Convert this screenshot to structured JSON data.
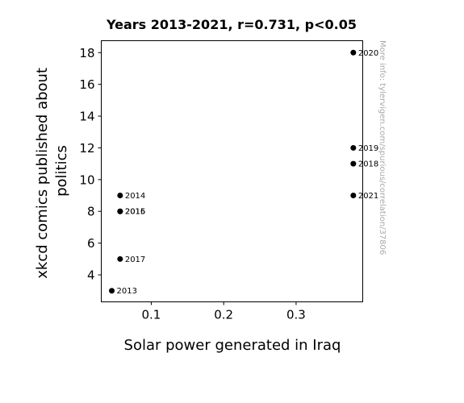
{
  "chart_data": {
    "type": "scatter",
    "title": "Years 2013-2021, r=0.731, p<0.05",
    "xlabel": "Solar power generated in Iraq",
    "ylabel_lines": [
      "xkcd comics published about",
      "politics"
    ],
    "watermark": "More info: tylervigen.com/spurious/correlation/37806",
    "xlim": [
      0.031,
      0.392
    ],
    "ylim": [
      2.3,
      18.75
    ],
    "xticks": [
      0.1,
      0.2,
      0.3
    ],
    "xtick_labels": [
      "0.1",
      "0.2",
      "0.3"
    ],
    "yticks": [
      4,
      6,
      8,
      10,
      12,
      14,
      16,
      18
    ],
    "ytick_labels": [
      "4",
      "6",
      "8",
      "10",
      "12",
      "14",
      "16",
      "18"
    ],
    "point_color": "#000000",
    "points": [
      {
        "label": "2013",
        "x": 0.0455,
        "y": 3
      },
      {
        "label": "2014",
        "x": 0.057,
        "y": 9
      },
      {
        "label": "2015",
        "x": 0.057,
        "y": 8
      },
      {
        "label": "2016",
        "x": 0.057,
        "y": 8
      },
      {
        "label": "2017",
        "x": 0.057,
        "y": 5
      },
      {
        "label": "2018",
        "x": 0.379,
        "y": 11
      },
      {
        "label": "2019",
        "x": 0.379,
        "y": 12
      },
      {
        "label": "2020",
        "x": 0.379,
        "y": 18
      },
      {
        "label": "2021",
        "x": 0.379,
        "y": 9
      }
    ]
  }
}
